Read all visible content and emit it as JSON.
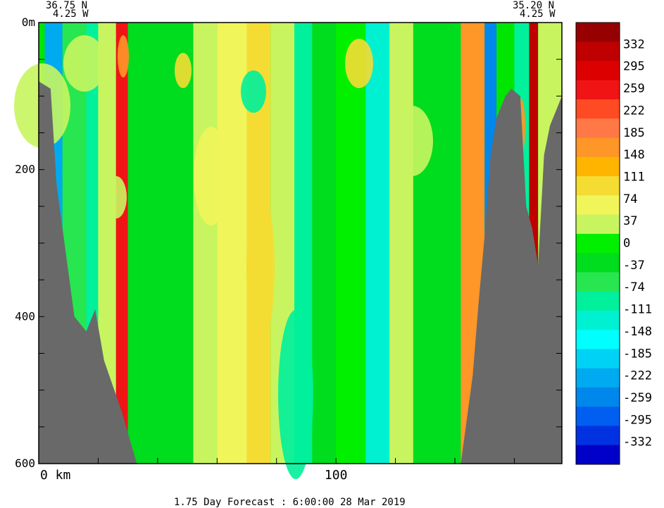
{
  "header": {
    "left_lat": "36.75 N",
    "left_lon": "4.25 W",
    "right_lat": "35.20 N",
    "right_lon": "4.25 W"
  },
  "footer": {
    "caption": "1.75 Day Forecast :  6:00:00  28 Mar 2019"
  },
  "colors": {
    "land": "#696969",
    "frame": "#000000",
    "background": "#ffffff"
  },
  "chart_data": {
    "type": "heatmap",
    "title": "",
    "subtitle": "",
    "xlabel": "",
    "ylabel": "",
    "x_unit": "km",
    "y_unit": "m",
    "xlim": [
      0,
      176
    ],
    "ylim": [
      600,
      0
    ],
    "x_ticks": [
      {
        "value": 0,
        "label": "0 km"
      },
      {
        "value": 100,
        "label": "100"
      }
    ],
    "y_ticks": [
      {
        "value": 0,
        "label": "0m"
      },
      {
        "value": 200,
        "label": "200"
      },
      {
        "value": 400,
        "label": "400"
      },
      {
        "value": 600,
        "label": "600"
      }
    ],
    "x_minor_ticks": [
      20,
      40,
      60,
      80,
      100,
      120,
      140,
      160
    ],
    "y_minor_ticks": [
      50,
      100,
      150,
      200,
      250,
      300,
      350,
      400,
      450,
      500,
      550
    ],
    "colorbar": {
      "labels": [
        "332",
        "295",
        "259",
        "222",
        "185",
        "148",
        "111",
        "74",
        "37",
        "0",
        "-37",
        "-74",
        "-111",
        "-148",
        "-185",
        "-222",
        "-259",
        "-295",
        "-332"
      ],
      "colors": [
        "#960000",
        "#be0000",
        "#dc0000",
        "#f01414",
        "#ff4b23",
        "#ff7846",
        "#ff9628",
        "#ffb400",
        "#f5dc32",
        "#f0f55a",
        "#c8f55f",
        "#00f000",
        "#00dc1e",
        "#28e650",
        "#00f09b",
        "#00f0d2",
        "#00ffff",
        "#00d2f5",
        "#00aaf0",
        "#0087ec",
        "#005ff0",
        "#0032e1",
        "#0000c8"
      ]
    },
    "bathymetry_left": [
      [
        0,
        80
      ],
      [
        4,
        90
      ],
      [
        6,
        220
      ],
      [
        9,
        310
      ],
      [
        12,
        400
      ],
      [
        16,
        420
      ],
      [
        19,
        390
      ],
      [
        22,
        460
      ],
      [
        28,
        530
      ],
      [
        33,
        600
      ]
    ],
    "bathymetry_right": [
      [
        142,
        600
      ],
      [
        146,
        480
      ],
      [
        148,
        380
      ],
      [
        150,
        290
      ],
      [
        152,
        180
      ],
      [
        154,
        130
      ],
      [
        157,
        100
      ],
      [
        159,
        90
      ],
      [
        162,
        100
      ],
      [
        164,
        250
      ],
      [
        166,
        280
      ],
      [
        168,
        330
      ],
      [
        170,
        180
      ],
      [
        172,
        140
      ],
      [
        176,
        100
      ]
    ],
    "field_bands": [
      {
        "x0": 2,
        "x1": 8,
        "value": -222
      },
      {
        "x0": 8,
        "x1": 20,
        "value": -74
      },
      {
        "x0": 16,
        "x1": 20,
        "value": -111
      },
      {
        "x0": 20,
        "x1": 26,
        "value": 37
      },
      {
        "x0": 26,
        "x1": 30,
        "value": 259
      },
      {
        "x0": 30,
        "x1": 38,
        "value": -37
      },
      {
        "x0": 38,
        "x1": 52,
        "value": -37
      },
      {
        "x0": 52,
        "x1": 60,
        "value": 37
      },
      {
        "x0": 60,
        "x1": 70,
        "value": 74
      },
      {
        "x0": 70,
        "x1": 78,
        "value": 111
      },
      {
        "x0": 78,
        "x1": 86,
        "value": 37
      },
      {
        "x0": 86,
        "x1": 92,
        "value": -111
      },
      {
        "x0": 92,
        "x1": 100,
        "value": -37
      },
      {
        "x0": 100,
        "x1": 110,
        "value": 0
      },
      {
        "x0": 110,
        "x1": 118,
        "value": -148
      },
      {
        "x0": 118,
        "x1": 126,
        "value": 37
      },
      {
        "x0": 126,
        "x1": 142,
        "value": -37
      },
      {
        "x0": 142,
        "x1": 150,
        "value": 185
      },
      {
        "x0": 150,
        "x1": 154,
        "value": -259
      },
      {
        "x0": 160,
        "x1": 165,
        "value": -111
      },
      {
        "x0": 165,
        "x1": 168,
        "value": 332
      },
      {
        "x0": 168,
        "x1": 176,
        "value": 37
      }
    ]
  }
}
